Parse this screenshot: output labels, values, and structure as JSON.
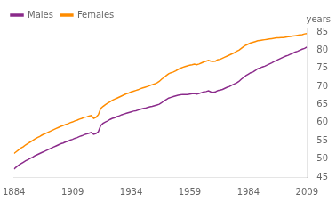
{
  "chart_data": {
    "type": "line",
    "ylabel": "years",
    "x": [
      1884,
      1885,
      1886,
      1887,
      1888,
      1889,
      1890,
      1891,
      1892,
      1893,
      1894,
      1895,
      1896,
      1897,
      1898,
      1899,
      1900,
      1901,
      1902,
      1903,
      1904,
      1905,
      1906,
      1907,
      1908,
      1909,
      1910,
      1911,
      1912,
      1913,
      1914,
      1915,
      1916,
      1917,
      1918,
      1919,
      1920,
      1921,
      1922,
      1923,
      1924,
      1925,
      1926,
      1927,
      1928,
      1929,
      1930,
      1931,
      1932,
      1933,
      1934,
      1935,
      1936,
      1937,
      1938,
      1939,
      1940,
      1941,
      1942,
      1943,
      1944,
      1945,
      1946,
      1947,
      1948,
      1949,
      1950,
      1951,
      1952,
      1953,
      1954,
      1955,
      1956,
      1957,
      1958,
      1959,
      1960,
      1961,
      1962,
      1963,
      1964,
      1965,
      1966,
      1967,
      1968,
      1969,
      1970,
      1971,
      1972,
      1973,
      1974,
      1975,
      1976,
      1977,
      1978,
      1979,
      1980,
      1981,
      1982,
      1983,
      1984,
      1985,
      1986,
      1987,
      1988,
      1989,
      1990,
      1991,
      1992,
      1993,
      1994,
      1995,
      1996,
      1997,
      1998,
      1999,
      2000,
      2001,
      2002,
      2003,
      2004,
      2005,
      2006,
      2007,
      2008,
      2009
    ],
    "series": [
      {
        "name": "Males",
        "color": "#8B2B8B",
        "values": [
          47.2,
          47.8,
          48.3,
          48.7,
          49.1,
          49.5,
          49.8,
          50.2,
          50.5,
          50.9,
          51.2,
          51.5,
          51.8,
          52.1,
          52.4,
          52.7,
          53.0,
          53.3,
          53.6,
          53.9,
          54.2,
          54.4,
          54.7,
          54.9,
          55.2,
          55.4,
          55.7,
          55.9,
          56.2,
          56.4,
          56.7,
          56.9,
          57.1,
          57.3,
          56.8,
          57.0,
          57.5,
          59.2,
          59.8,
          60.2,
          60.5,
          60.9,
          61.2,
          61.4,
          61.7,
          61.9,
          62.2,
          62.4,
          62.6,
          62.8,
          63.0,
          63.2,
          63.3,
          63.5,
          63.7,
          63.9,
          64.0,
          64.2,
          64.4,
          64.5,
          64.7,
          64.9,
          65.1,
          65.5,
          66.0,
          66.4,
          66.8,
          67.0,
          67.2,
          67.4,
          67.6,
          67.7,
          67.8,
          67.8,
          67.8,
          67.9,
          68.0,
          68.1,
          67.9,
          68.1,
          68.3,
          68.5,
          68.6,
          68.8,
          68.5,
          68.4,
          68.5,
          68.9,
          69.0,
          69.2,
          69.5,
          69.8,
          70.0,
          70.4,
          70.7,
          71.0,
          71.4,
          72.0,
          72.5,
          73.0,
          73.4,
          73.8,
          74.0,
          74.4,
          74.9,
          75.1,
          75.4,
          75.6,
          75.9,
          76.2,
          76.5,
          76.9,
          77.2,
          77.5,
          77.8,
          78.1,
          78.4,
          78.6,
          78.9,
          79.2,
          79.5,
          79.7,
          80.0,
          80.3,
          80.5,
          80.9
        ]
      },
      {
        "name": "Females",
        "color": "#FF8C00",
        "values": [
          51.5,
          52.0,
          52.5,
          53.0,
          53.4,
          53.9,
          54.3,
          54.7,
          55.1,
          55.5,
          55.9,
          56.2,
          56.6,
          56.9,
          57.2,
          57.5,
          57.8,
          58.1,
          58.4,
          58.7,
          59.0,
          59.2,
          59.5,
          59.7,
          60.0,
          60.2,
          60.5,
          60.7,
          61.0,
          61.2,
          61.5,
          61.6,
          61.8,
          62.0,
          61.2,
          61.5,
          62.2,
          63.9,
          64.5,
          65.0,
          65.4,
          65.8,
          66.2,
          66.5,
          66.8,
          67.1,
          67.4,
          67.7,
          68.0,
          68.2,
          68.5,
          68.7,
          68.9,
          69.1,
          69.4,
          69.6,
          69.8,
          70.0,
          70.3,
          70.5,
          70.7,
          71.0,
          71.4,
          72.0,
          72.5,
          73.0,
          73.5,
          73.8,
          74.0,
          74.3,
          74.7,
          75.0,
          75.3,
          75.5,
          75.7,
          75.9,
          76.0,
          76.2,
          76.0,
          76.2,
          76.5,
          76.8,
          77.0,
          77.2,
          77.0,
          76.9,
          77.0,
          77.4,
          77.5,
          77.8,
          78.1,
          78.4,
          78.7,
          79.0,
          79.3,
          79.7,
          80.0,
          80.5,
          81.0,
          81.4,
          81.7,
          82.0,
          82.2,
          82.4,
          82.6,
          82.7,
          82.8,
          82.9,
          83.0,
          83.1,
          83.2,
          83.3,
          83.4,
          83.4,
          83.5,
          83.5,
          83.6,
          83.7,
          83.8,
          83.9,
          84.0,
          84.1,
          84.2,
          84.3,
          84.5,
          84.6
        ]
      }
    ],
    "xlim": [
      1884,
      2009
    ],
    "ylim": [
      45,
      86
    ],
    "xticks": [
      1884,
      1909,
      1934,
      1959,
      1984,
      2009
    ],
    "yticks": [
      45,
      50,
      55,
      60,
      65,
      70,
      75,
      80,
      85
    ],
    "grid": false,
    "legend": "upper left"
  }
}
